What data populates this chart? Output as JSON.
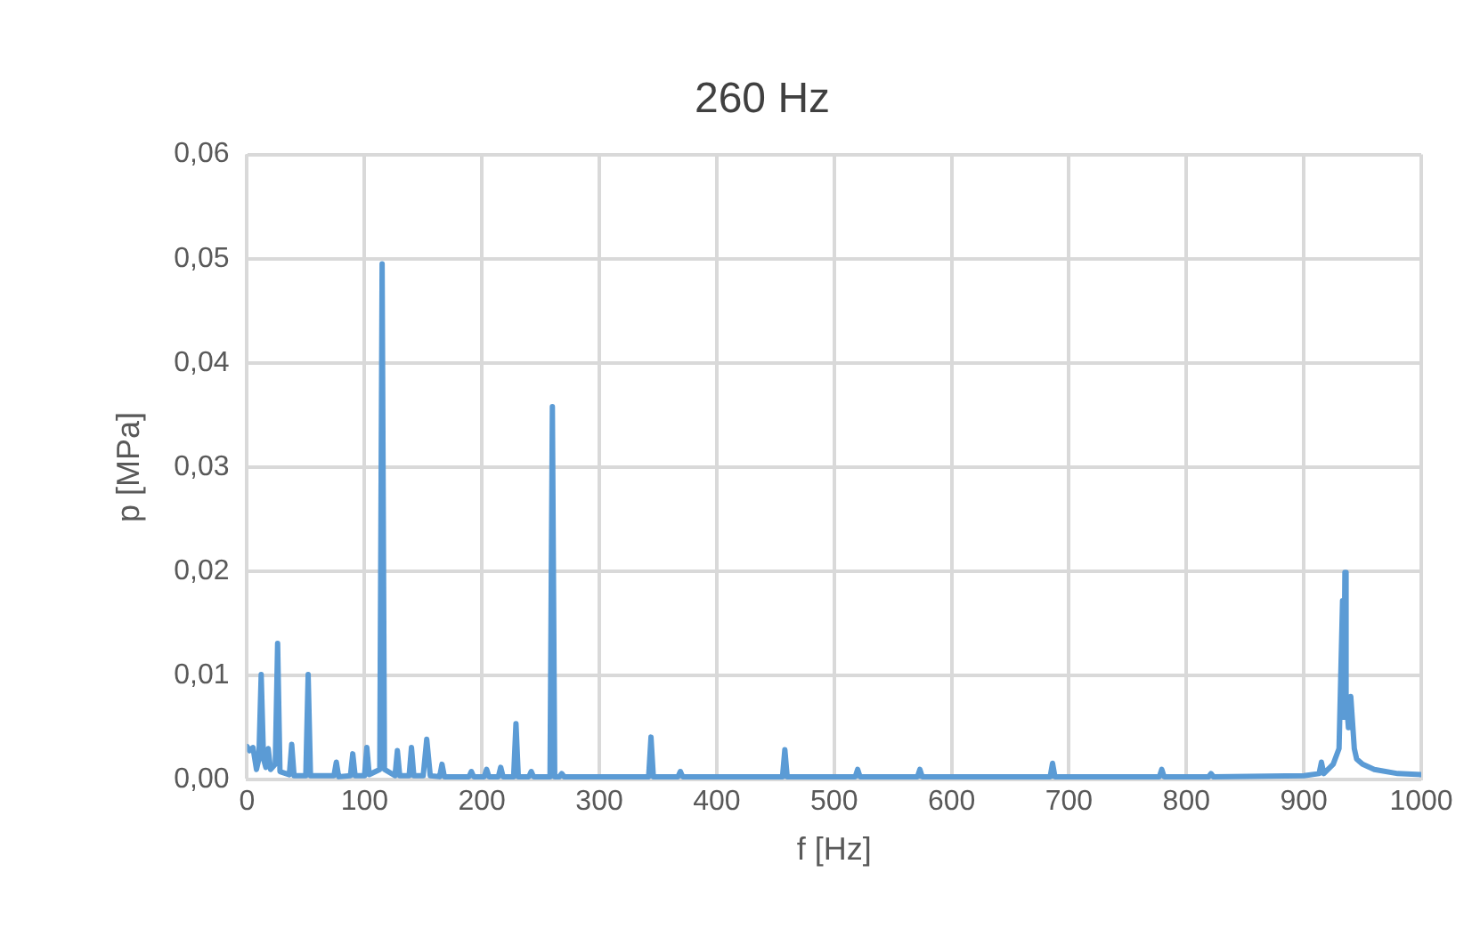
{
  "chart_data": {
    "type": "line",
    "title": "260 Hz",
    "xlabel": "f [Hz]",
    "ylabel": "p [MPa]",
    "xlim": [
      0,
      1000
    ],
    "xticks": [
      0,
      100,
      200,
      300,
      400,
      500,
      600,
      700,
      800,
      900,
      1000
    ],
    "ylim": [
      0,
      0.06
    ],
    "yticks": [
      {
        "value": 0,
        "label": "0,00"
      },
      {
        "value": 0.01,
        "label": "0,01"
      },
      {
        "value": 0.02,
        "label": "0,02"
      },
      {
        "value": 0.03,
        "label": "0,03"
      },
      {
        "value": 0.04,
        "label": "0,04"
      },
      {
        "value": 0.05,
        "label": "0,05"
      },
      {
        "value": 0.06,
        "label": "0,06"
      }
    ],
    "grid": true,
    "legend": false,
    "marker": "none",
    "line_style": "solid",
    "series": [
      {
        "color": "#5b9bd5",
        "x": [
          0,
          2,
          5,
          8,
          10,
          12,
          14,
          16,
          18,
          20,
          24,
          26,
          28,
          36,
          38,
          40,
          50,
          52,
          54,
          74,
          76,
          78,
          88,
          90,
          92,
          100,
          102,
          104,
          113,
          115,
          117,
          126,
          128,
          130,
          138,
          140,
          142,
          150,
          153,
          156,
          164,
          166,
          168,
          189,
          191,
          193,
          202,
          204,
          206,
          214,
          216,
          218,
          227,
          229,
          231,
          240,
          242,
          244,
          258,
          260,
          262,
          266,
          268,
          270,
          300,
          342,
          344,
          346,
          367,
          369,
          371,
          456,
          458,
          460,
          518,
          520,
          522,
          571,
          573,
          575,
          684,
          686,
          688,
          777,
          779,
          781,
          819,
          821,
          823,
          900,
          913,
          915,
          917,
          925,
          930,
          933,
          934,
          935,
          936,
          938,
          940,
          943,
          945,
          950,
          960,
          980,
          1000
        ],
        "values": [
          0.0032,
          0.0028,
          0.0031,
          0.001,
          0.002,
          0.0101,
          0.002,
          0.0012,
          0.003,
          0.001,
          0.0015,
          0.0131,
          0.0008,
          0.0005,
          0.0034,
          0.0004,
          0.0004,
          0.0101,
          0.0004,
          0.0004,
          0.0017,
          0.0003,
          0.0004,
          0.0025,
          0.0004,
          0.0004,
          0.0031,
          0.0005,
          0.001,
          0.0495,
          0.001,
          0.0004,
          0.0028,
          0.0004,
          0.0004,
          0.0031,
          0.0004,
          0.0004,
          0.0039,
          0.0004,
          0.0003,
          0.0015,
          0.0003,
          0.0003,
          0.0008,
          0.0003,
          0.0003,
          0.001,
          0.0003,
          0.0003,
          0.0012,
          0.0003,
          0.0003,
          0.0054,
          0.0003,
          0.0003,
          0.0008,
          0.0003,
          0.0003,
          0.0358,
          0.0003,
          0.0003,
          0.0006,
          0.0003,
          0.0003,
          0.0003,
          0.0041,
          0.0003,
          0.0003,
          0.0008,
          0.0003,
          0.0003,
          0.0029,
          0.0003,
          0.0003,
          0.001,
          0.0003,
          0.0003,
          0.001,
          0.0003,
          0.0003,
          0.0016,
          0.0003,
          0.0003,
          0.001,
          0.0003,
          0.0003,
          0.0006,
          0.0003,
          0.0004,
          0.0006,
          0.0017,
          0.0006,
          0.0015,
          0.003,
          0.0172,
          0.006,
          0.0199,
          0.008,
          0.005,
          0.008,
          0.003,
          0.002,
          0.0015,
          0.001,
          0.0006,
          0.0005
        ]
      }
    ]
  }
}
